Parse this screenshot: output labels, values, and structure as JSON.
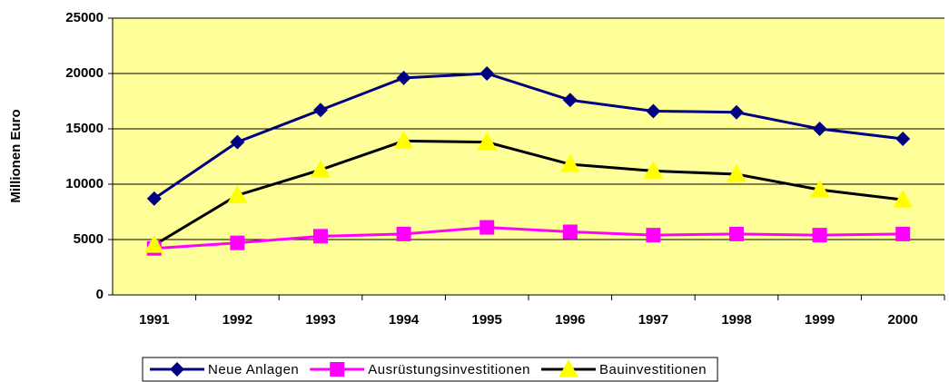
{
  "chart_data": {
    "type": "line",
    "y_label": "Millionen Euro",
    "categories": [
      "1991",
      "1992",
      "1993",
      "1994",
      "1995",
      "1996",
      "1997",
      "1998",
      "1999",
      "2000"
    ],
    "series": [
      {
        "name": "Neue Anlagen",
        "color": "#000080",
        "marker_color": "#000080",
        "marker": "diamond",
        "values": [
          8700,
          13800,
          16700,
          19600,
          20000,
          17600,
          16600,
          16500,
          15000,
          14100
        ]
      },
      {
        "name": "Ausrüstungsinvestitionen",
        "color": "#ff00ff",
        "marker_color": "#ff00ff",
        "marker": "square",
        "values": [
          4200,
          4700,
          5300,
          5500,
          6100,
          5700,
          5400,
          5500,
          5400,
          5500
        ]
      },
      {
        "name": "Bauinvestitionen",
        "color": "#000000",
        "marker_color": "#ffff00",
        "marker": "triangle",
        "values": [
          4500,
          9000,
          11300,
          13900,
          13800,
          11800,
          11200,
          10900,
          9500,
          8600
        ]
      }
    ],
    "ylim": [
      0,
      25000
    ],
    "yticks": [
      0,
      5000,
      10000,
      15000,
      20000,
      25000
    ],
    "grid": true,
    "background": "#ffff99",
    "legend": "bottom"
  }
}
